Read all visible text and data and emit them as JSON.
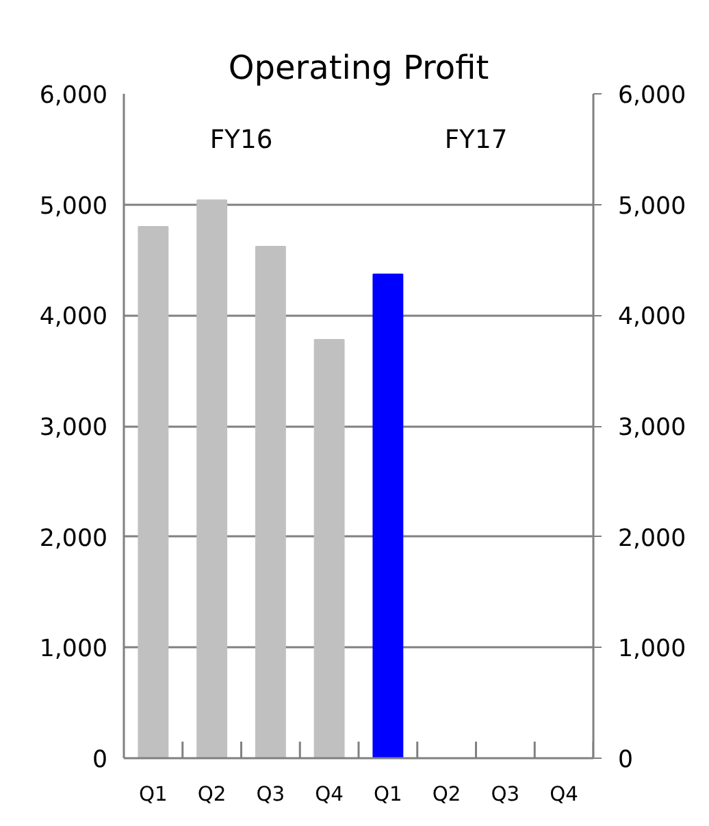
{
  "chart_data": {
    "type": "bar",
    "title": "Operating Profit",
    "categories": [
      "Q1",
      "Q2",
      "Q3",
      "Q4",
      "Q1",
      "Q2",
      "Q3",
      "Q4"
    ],
    "values": [
      4800,
      5040,
      4620,
      3780,
      4370,
      null,
      null,
      null
    ],
    "colors": [
      "#c0c0c0",
      "#c0c0c0",
      "#c0c0c0",
      "#c0c0c0",
      "#0000ff",
      "#c0c0c0",
      "#c0c0c0",
      "#c0c0c0"
    ],
    "ylim": [
      0,
      6000
    ],
    "yticks": [
      {
        "value": 0,
        "label": "0"
      },
      {
        "value": 1000,
        "label": "1,000"
      },
      {
        "value": 2000,
        "label": "2,000"
      },
      {
        "value": 3000,
        "label": "3,000"
      },
      {
        "value": 4000,
        "label": "4,000"
      },
      {
        "value": 5000,
        "label": "5,000"
      },
      {
        "value": 6000,
        "label": "6,000"
      }
    ],
    "y2lim": [
      0,
      6000
    ],
    "y2ticks": [
      {
        "value": 0,
        "label": "0"
      },
      {
        "value": 1000,
        "label": "1,000"
      },
      {
        "value": 2000,
        "label": "2,000"
      },
      {
        "value": 3000,
        "label": "3,000"
      },
      {
        "value": 4000,
        "label": "4,000"
      },
      {
        "value": 5000,
        "label": "5,000"
      },
      {
        "value": 6000,
        "label": "6,000"
      }
    ],
    "annotations": [
      "FY16",
      "FY17"
    ],
    "grid": "y"
  }
}
